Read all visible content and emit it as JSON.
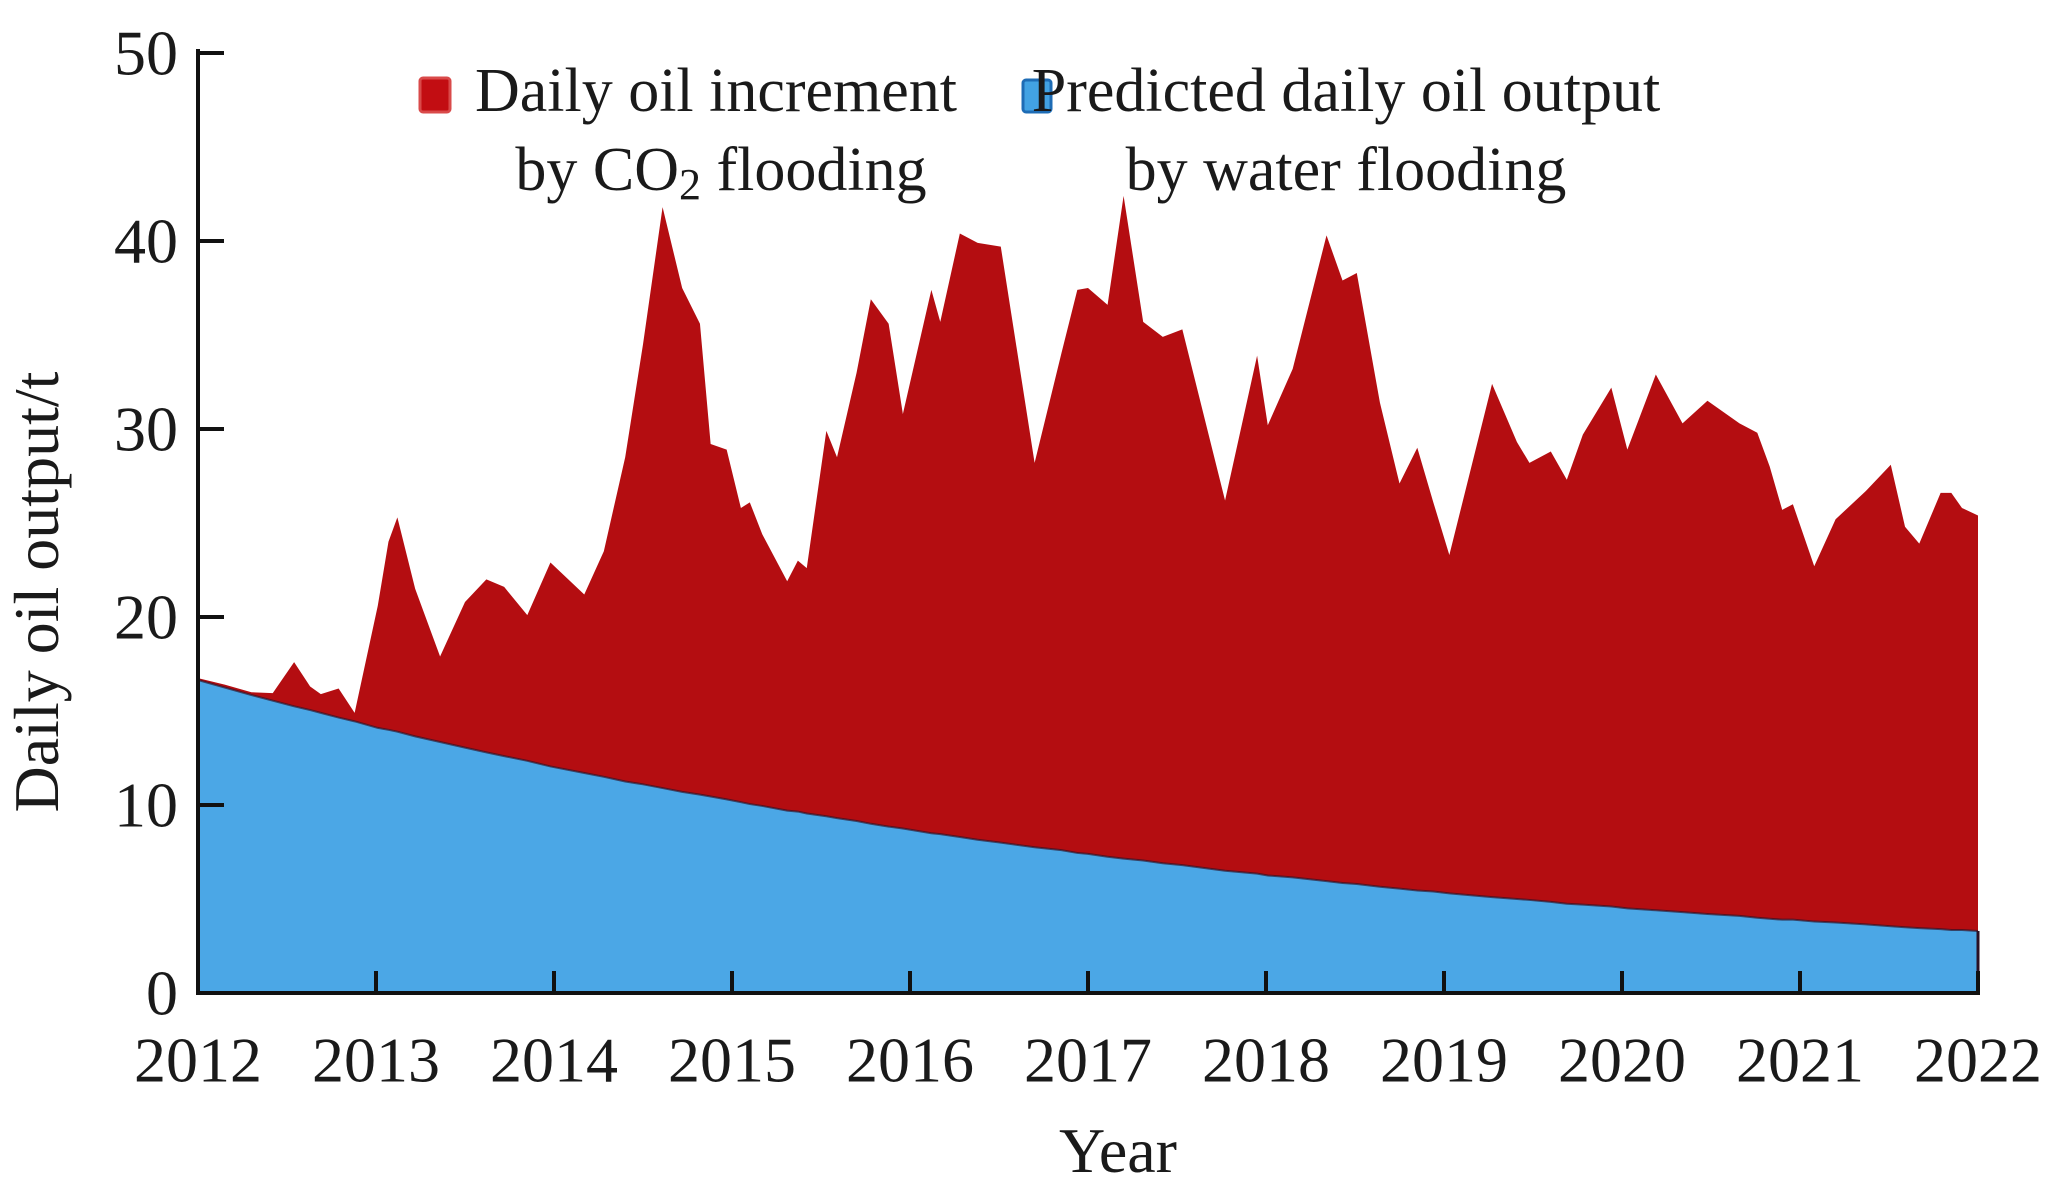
{
  "figure": {
    "y_axis_title": "Daily oil output/t",
    "x_axis_title": "Year"
  },
  "legend": {
    "items": [
      {
        "id": "co2-increment",
        "swatch_color": "#c20d12",
        "swatch_border": "#d94a4a",
        "line1": "Daily oil increment",
        "line2_parts": [
          {
            "t": "by CO"
          },
          {
            "t": "2",
            "sub": true
          },
          {
            "t": " flooding"
          }
        ]
      },
      {
        "id": "water-flooding",
        "swatch_color": "#42a2e3",
        "swatch_border": "#1e6cb5",
        "line1": "Predicted daily oil output",
        "line2_parts": [
          {
            "t": "by water flooding"
          }
        ]
      }
    ]
  },
  "chart_data": {
    "type": "area",
    "stacked": true,
    "title": "",
    "xlabel": "Year",
    "ylabel": "Daily oil output/t",
    "xlim": [
      2012,
      2022
    ],
    "ylim": [
      0,
      50
    ],
    "x_ticks": [
      2012,
      2013,
      2014,
      2015,
      2016,
      2017,
      2018,
      2019,
      2020,
      2021,
      2022
    ],
    "y_ticks": [
      0,
      10,
      20,
      30,
      40,
      50
    ],
    "grid": false,
    "legend_position": "top-center",
    "colors": {
      "co2_area": "#b40d11",
      "water_area": "#4ba7e6",
      "boundary_line": "#2a1025",
      "axis": "#111111"
    },
    "x": [
      2012.0,
      2012.15,
      2012.3,
      2012.42,
      2012.54,
      2012.63,
      2012.69,
      2012.79,
      2012.88,
      2013.01,
      2013.07,
      2013.12,
      2013.22,
      2013.36,
      2013.5,
      2013.62,
      2013.72,
      2013.85,
      2013.98,
      2014.17,
      2014.28,
      2014.4,
      2014.5,
      2014.61,
      2014.72,
      2014.82,
      2014.88,
      2014.97,
      2015.05,
      2015.1,
      2015.17,
      2015.31,
      2015.37,
      2015.42,
      2015.53,
      2015.59,
      2015.7,
      2015.78,
      2015.88,
      2015.96,
      2016.12,
      2016.17,
      2016.28,
      2016.38,
      2016.51,
      2016.7,
      2016.85,
      2016.94,
      2017.0,
      2017.11,
      2017.2,
      2017.31,
      2017.42,
      2017.53,
      2017.77,
      2017.95,
      2018.01,
      2018.15,
      2018.34,
      2018.43,
      2018.51,
      2018.64,
      2018.75,
      2018.85,
      2018.94,
      2019.03,
      2019.27,
      2019.41,
      2019.48,
      2019.6,
      2019.69,
      2019.78,
      2019.94,
      2020.03,
      2020.19,
      2020.34,
      2020.48,
      2020.66,
      2020.76,
      2020.83,
      2020.9,
      2020.96,
      2021.08,
      2021.2,
      2021.37,
      2021.51,
      2021.59,
      2021.67,
      2021.79,
      2021.85,
      2021.91,
      2022.0
    ],
    "series": [
      {
        "name": "Predicted daily oil output by water flooding",
        "role": "base",
        "color": "#4ba7e6",
        "values": [
          16.65,
          16.25,
          15.85,
          15.55,
          15.25,
          15.05,
          14.9,
          14.65,
          14.45,
          14.1,
          14.0,
          13.9,
          13.65,
          13.35,
          13.05,
          12.8,
          12.6,
          12.35,
          12.05,
          11.7,
          11.5,
          11.25,
          11.1,
          10.9,
          10.7,
          10.55,
          10.45,
          10.3,
          10.15,
          10.05,
          9.95,
          9.7,
          9.65,
          9.55,
          9.4,
          9.3,
          9.15,
          9.0,
          8.85,
          8.75,
          8.5,
          8.45,
          8.3,
          8.15,
          8.0,
          7.75,
          7.6,
          7.45,
          7.4,
          7.25,
          7.15,
          7.05,
          6.9,
          6.8,
          6.5,
          6.35,
          6.25,
          6.15,
          5.95,
          5.85,
          5.8,
          5.65,
          5.55,
          5.45,
          5.4,
          5.3,
          5.1,
          5.0,
          4.95,
          4.85,
          4.75,
          4.7,
          4.6,
          4.5,
          4.4,
          4.3,
          4.2,
          4.1,
          4.0,
          3.95,
          3.9,
          3.9,
          3.8,
          3.75,
          3.65,
          3.55,
          3.5,
          3.45,
          3.4,
          3.35,
          3.35,
          3.3
        ]
      },
      {
        "name": "Daily oil increment by CO2 flooding",
        "role": "stacked-on-base",
        "color": "#b40d11",
        "values_total": [
          16.75,
          16.4,
          16.0,
          15.95,
          17.6,
          16.3,
          15.9,
          16.2,
          14.9,
          20.6,
          24.0,
          25.3,
          21.5,
          17.9,
          20.8,
          22.0,
          21.6,
          20.1,
          22.9,
          21.2,
          23.5,
          28.5,
          34.5,
          41.8,
          37.5,
          35.6,
          29.2,
          28.9,
          25.8,
          26.1,
          24.4,
          21.9,
          23.0,
          22.6,
          29.9,
          28.5,
          33.0,
          36.9,
          35.6,
          30.8,
          37.4,
          35.7,
          40.4,
          39.9,
          39.7,
          28.2,
          34.0,
          37.4,
          37.5,
          36.6,
          42.4,
          35.7,
          34.9,
          35.3,
          26.2,
          33.9,
          30.2,
          33.2,
          40.3,
          37.9,
          38.3,
          31.4,
          27.1,
          29.0,
          26.1,
          23.3,
          32.4,
          29.3,
          28.2,
          28.8,
          27.3,
          29.7,
          32.2,
          28.9,
          32.9,
          30.3,
          31.5,
          30.3,
          29.8,
          28.0,
          25.7,
          26.0,
          22.7,
          25.2,
          26.7,
          28.1,
          24.8,
          23.9,
          26.6,
          26.6,
          25.8,
          25.4
        ]
      }
    ]
  }
}
